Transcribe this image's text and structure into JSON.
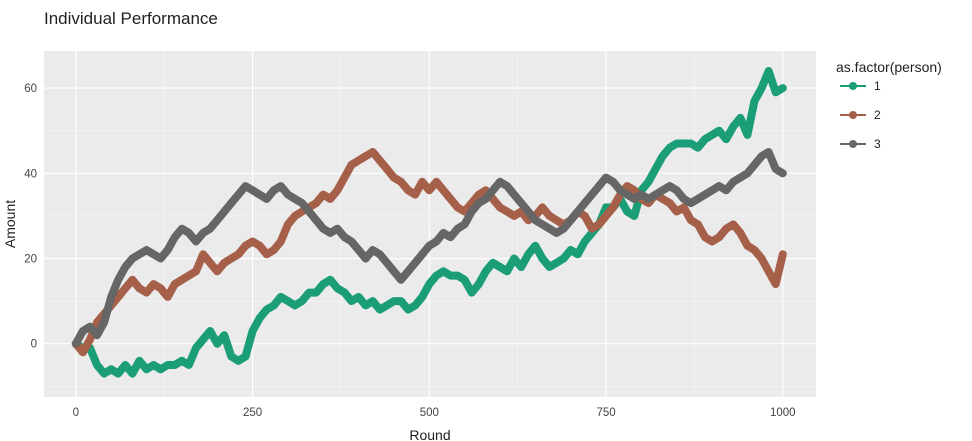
{
  "chart_data": {
    "type": "line",
    "title": "Individual Performance",
    "xlabel": "Round",
    "ylabel": "Amount",
    "xlim": [
      -45,
      1047
    ],
    "ylim": [
      -12.5,
      68.7
    ],
    "x_ticks": [
      0,
      250,
      500,
      750,
      1000
    ],
    "x_tick_labels": [
      "0",
      "250",
      "500",
      "750",
      "1000"
    ],
    "y_ticks": [
      0,
      20,
      40,
      60
    ],
    "y_tick_labels": [
      "0",
      "20",
      "40",
      "60"
    ],
    "grid": true,
    "panel_background": "#EBEBEB",
    "legend": {
      "title": "as.factor(person)",
      "position": "right"
    },
    "series": [
      {
        "name": "1",
        "color": "#1B9E77",
        "points": [
          [
            0,
            0
          ],
          [
            10,
            -1
          ],
          [
            20,
            -1
          ],
          [
            30,
            -5
          ],
          [
            40,
            -7
          ],
          [
            50,
            -6
          ],
          [
            60,
            -7
          ],
          [
            70,
            -5
          ],
          [
            80,
            -7
          ],
          [
            90,
            -4
          ],
          [
            100,
            -6
          ],
          [
            110,
            -5
          ],
          [
            120,
            -6
          ],
          [
            130,
            -5
          ],
          [
            140,
            -5
          ],
          [
            150,
            -4
          ],
          [
            160,
            -5
          ],
          [
            170,
            -1
          ],
          [
            180,
            1
          ],
          [
            190,
            3
          ],
          [
            200,
            0
          ],
          [
            210,
            2
          ],
          [
            220,
            -3
          ],
          [
            230,
            -4
          ],
          [
            240,
            -3
          ],
          [
            250,
            3
          ],
          [
            260,
            6
          ],
          [
            270,
            8
          ],
          [
            280,
            9
          ],
          [
            290,
            11
          ],
          [
            300,
            10
          ],
          [
            310,
            9
          ],
          [
            320,
            10
          ],
          [
            330,
            12
          ],
          [
            340,
            12
          ],
          [
            350,
            14
          ],
          [
            360,
            15
          ],
          [
            370,
            13
          ],
          [
            380,
            12
          ],
          [
            390,
            10
          ],
          [
            400,
            11
          ],
          [
            410,
            9
          ],
          [
            420,
            10
          ],
          [
            430,
            8
          ],
          [
            440,
            9
          ],
          [
            450,
            10
          ],
          [
            460,
            10
          ],
          [
            470,
            8
          ],
          [
            480,
            9
          ],
          [
            490,
            11
          ],
          [
            500,
            14
          ],
          [
            510,
            16
          ],
          [
            520,
            17
          ],
          [
            530,
            16
          ],
          [
            540,
            16
          ],
          [
            550,
            15
          ],
          [
            560,
            12
          ],
          [
            570,
            14
          ],
          [
            580,
            17
          ],
          [
            590,
            19
          ],
          [
            600,
            18
          ],
          [
            610,
            17
          ],
          [
            620,
            20
          ],
          [
            630,
            18
          ],
          [
            640,
            21
          ],
          [
            650,
            23
          ],
          [
            660,
            20
          ],
          [
            670,
            18
          ],
          [
            680,
            19
          ],
          [
            690,
            20
          ],
          [
            700,
            22
          ],
          [
            710,
            21
          ],
          [
            720,
            24
          ],
          [
            730,
            26
          ],
          [
            740,
            28
          ],
          [
            750,
            32
          ],
          [
            760,
            32
          ],
          [
            770,
            34
          ],
          [
            780,
            31
          ],
          [
            790,
            30
          ],
          [
            800,
            36
          ],
          [
            810,
            38
          ],
          [
            820,
            41
          ],
          [
            830,
            44
          ],
          [
            840,
            46
          ],
          [
            850,
            47
          ],
          [
            860,
            47
          ],
          [
            870,
            47
          ],
          [
            880,
            46
          ],
          [
            890,
            48
          ],
          [
            900,
            49
          ],
          [
            910,
            50
          ],
          [
            920,
            48
          ],
          [
            930,
            51
          ],
          [
            940,
            53
          ],
          [
            950,
            49
          ],
          [
            960,
            57
          ],
          [
            970,
            60
          ],
          [
            980,
            64
          ],
          [
            990,
            59
          ],
          [
            1000,
            60
          ]
        ]
      },
      {
        "name": "2",
        "color": "#A6604A",
        "points": [
          [
            0,
            0
          ],
          [
            10,
            -2
          ],
          [
            20,
            1
          ],
          [
            30,
            5
          ],
          [
            40,
            7
          ],
          [
            50,
            9
          ],
          [
            60,
            11
          ],
          [
            70,
            13
          ],
          [
            80,
            15
          ],
          [
            90,
            13
          ],
          [
            100,
            12
          ],
          [
            110,
            14
          ],
          [
            120,
            13
          ],
          [
            130,
            11
          ],
          [
            140,
            14
          ],
          [
            150,
            15
          ],
          [
            160,
            16
          ],
          [
            170,
            17
          ],
          [
            180,
            21
          ],
          [
            190,
            19
          ],
          [
            200,
            17
          ],
          [
            210,
            19
          ],
          [
            220,
            20
          ],
          [
            230,
            21
          ],
          [
            240,
            23
          ],
          [
            250,
            24
          ],
          [
            260,
            23
          ],
          [
            270,
            21
          ],
          [
            280,
            22
          ],
          [
            290,
            24
          ],
          [
            300,
            28
          ],
          [
            310,
            30
          ],
          [
            320,
            31
          ],
          [
            330,
            32
          ],
          [
            340,
            33
          ],
          [
            350,
            35
          ],
          [
            360,
            34
          ],
          [
            370,
            36
          ],
          [
            380,
            39
          ],
          [
            390,
            42
          ],
          [
            400,
            43
          ],
          [
            410,
            44
          ],
          [
            420,
            45
          ],
          [
            430,
            43
          ],
          [
            440,
            41
          ],
          [
            450,
            39
          ],
          [
            460,
            38
          ],
          [
            470,
            36
          ],
          [
            480,
            35
          ],
          [
            490,
            38
          ],
          [
            500,
            36
          ],
          [
            510,
            38
          ],
          [
            520,
            36
          ],
          [
            530,
            34
          ],
          [
            540,
            32
          ],
          [
            550,
            31
          ],
          [
            560,
            33
          ],
          [
            570,
            35
          ],
          [
            580,
            36
          ],
          [
            590,
            34
          ],
          [
            600,
            32
          ],
          [
            610,
            31
          ],
          [
            620,
            30
          ],
          [
            630,
            31
          ],
          [
            640,
            29
          ],
          [
            650,
            30
          ],
          [
            660,
            32
          ],
          [
            670,
            30
          ],
          [
            680,
            29
          ],
          [
            690,
            28
          ],
          [
            700,
            29
          ],
          [
            710,
            31
          ],
          [
            720,
            30
          ],
          [
            730,
            27
          ],
          [
            740,
            28
          ],
          [
            750,
            30
          ],
          [
            760,
            32
          ],
          [
            770,
            35
          ],
          [
            780,
            37
          ],
          [
            790,
            36
          ],
          [
            800,
            34
          ],
          [
            810,
            33
          ],
          [
            820,
            35
          ],
          [
            830,
            34
          ],
          [
            840,
            33
          ],
          [
            850,
            31
          ],
          [
            860,
            32
          ],
          [
            870,
            29
          ],
          [
            880,
            28
          ],
          [
            890,
            25
          ],
          [
            900,
            24
          ],
          [
            910,
            25
          ],
          [
            920,
            27
          ],
          [
            930,
            28
          ],
          [
            940,
            26
          ],
          [
            950,
            23
          ],
          [
            960,
            22
          ],
          [
            970,
            20
          ],
          [
            980,
            17
          ],
          [
            990,
            14
          ],
          [
            1000,
            21
          ]
        ]
      },
      {
        "name": "3",
        "color": "#666666",
        "points": [
          [
            0,
            0
          ],
          [
            10,
            3
          ],
          [
            20,
            4
          ],
          [
            30,
            2
          ],
          [
            40,
            5
          ],
          [
            50,
            11
          ],
          [
            60,
            15
          ],
          [
            70,
            18
          ],
          [
            80,
            20
          ],
          [
            90,
            21
          ],
          [
            100,
            22
          ],
          [
            110,
            21
          ],
          [
            120,
            20
          ],
          [
            130,
            22
          ],
          [
            140,
            25
          ],
          [
            150,
            27
          ],
          [
            160,
            26
          ],
          [
            170,
            24
          ],
          [
            180,
            26
          ],
          [
            190,
            27
          ],
          [
            200,
            29
          ],
          [
            210,
            31
          ],
          [
            220,
            33
          ],
          [
            230,
            35
          ],
          [
            240,
            37
          ],
          [
            250,
            36
          ],
          [
            260,
            35
          ],
          [
            270,
            34
          ],
          [
            280,
            36
          ],
          [
            290,
            37
          ],
          [
            300,
            35
          ],
          [
            310,
            34
          ],
          [
            320,
            33
          ],
          [
            330,
            31
          ],
          [
            340,
            29
          ],
          [
            350,
            27
          ],
          [
            360,
            26
          ],
          [
            370,
            27
          ],
          [
            380,
            25
          ],
          [
            390,
            24
          ],
          [
            400,
            22
          ],
          [
            410,
            20
          ],
          [
            420,
            22
          ],
          [
            430,
            21
          ],
          [
            440,
            19
          ],
          [
            450,
            17
          ],
          [
            460,
            15
          ],
          [
            470,
            17
          ],
          [
            480,
            19
          ],
          [
            490,
            21
          ],
          [
            500,
            23
          ],
          [
            510,
            24
          ],
          [
            520,
            26
          ],
          [
            530,
            25
          ],
          [
            540,
            27
          ],
          [
            550,
            28
          ],
          [
            560,
            31
          ],
          [
            570,
            33
          ],
          [
            580,
            34
          ],
          [
            590,
            36
          ],
          [
            600,
            38
          ],
          [
            610,
            37
          ],
          [
            620,
            35
          ],
          [
            630,
            33
          ],
          [
            640,
            31
          ],
          [
            650,
            29
          ],
          [
            660,
            28
          ],
          [
            670,
            27
          ],
          [
            680,
            26
          ],
          [
            690,
            27
          ],
          [
            700,
            29
          ],
          [
            710,
            31
          ],
          [
            720,
            33
          ],
          [
            730,
            35
          ],
          [
            740,
            37
          ],
          [
            750,
            39
          ],
          [
            760,
            38
          ],
          [
            770,
            36
          ],
          [
            780,
            35
          ],
          [
            790,
            34
          ],
          [
            800,
            35
          ],
          [
            810,
            34
          ],
          [
            820,
            35
          ],
          [
            830,
            36
          ],
          [
            840,
            37
          ],
          [
            850,
            36
          ],
          [
            860,
            34
          ],
          [
            870,
            33
          ],
          [
            880,
            34
          ],
          [
            890,
            35
          ],
          [
            900,
            36
          ],
          [
            910,
            37
          ],
          [
            920,
            36
          ],
          [
            930,
            38
          ],
          [
            940,
            39
          ],
          [
            950,
            40
          ],
          [
            960,
            42
          ],
          [
            970,
            44
          ],
          [
            980,
            45
          ],
          [
            990,
            41
          ],
          [
            1000,
            40
          ]
        ]
      }
    ]
  }
}
